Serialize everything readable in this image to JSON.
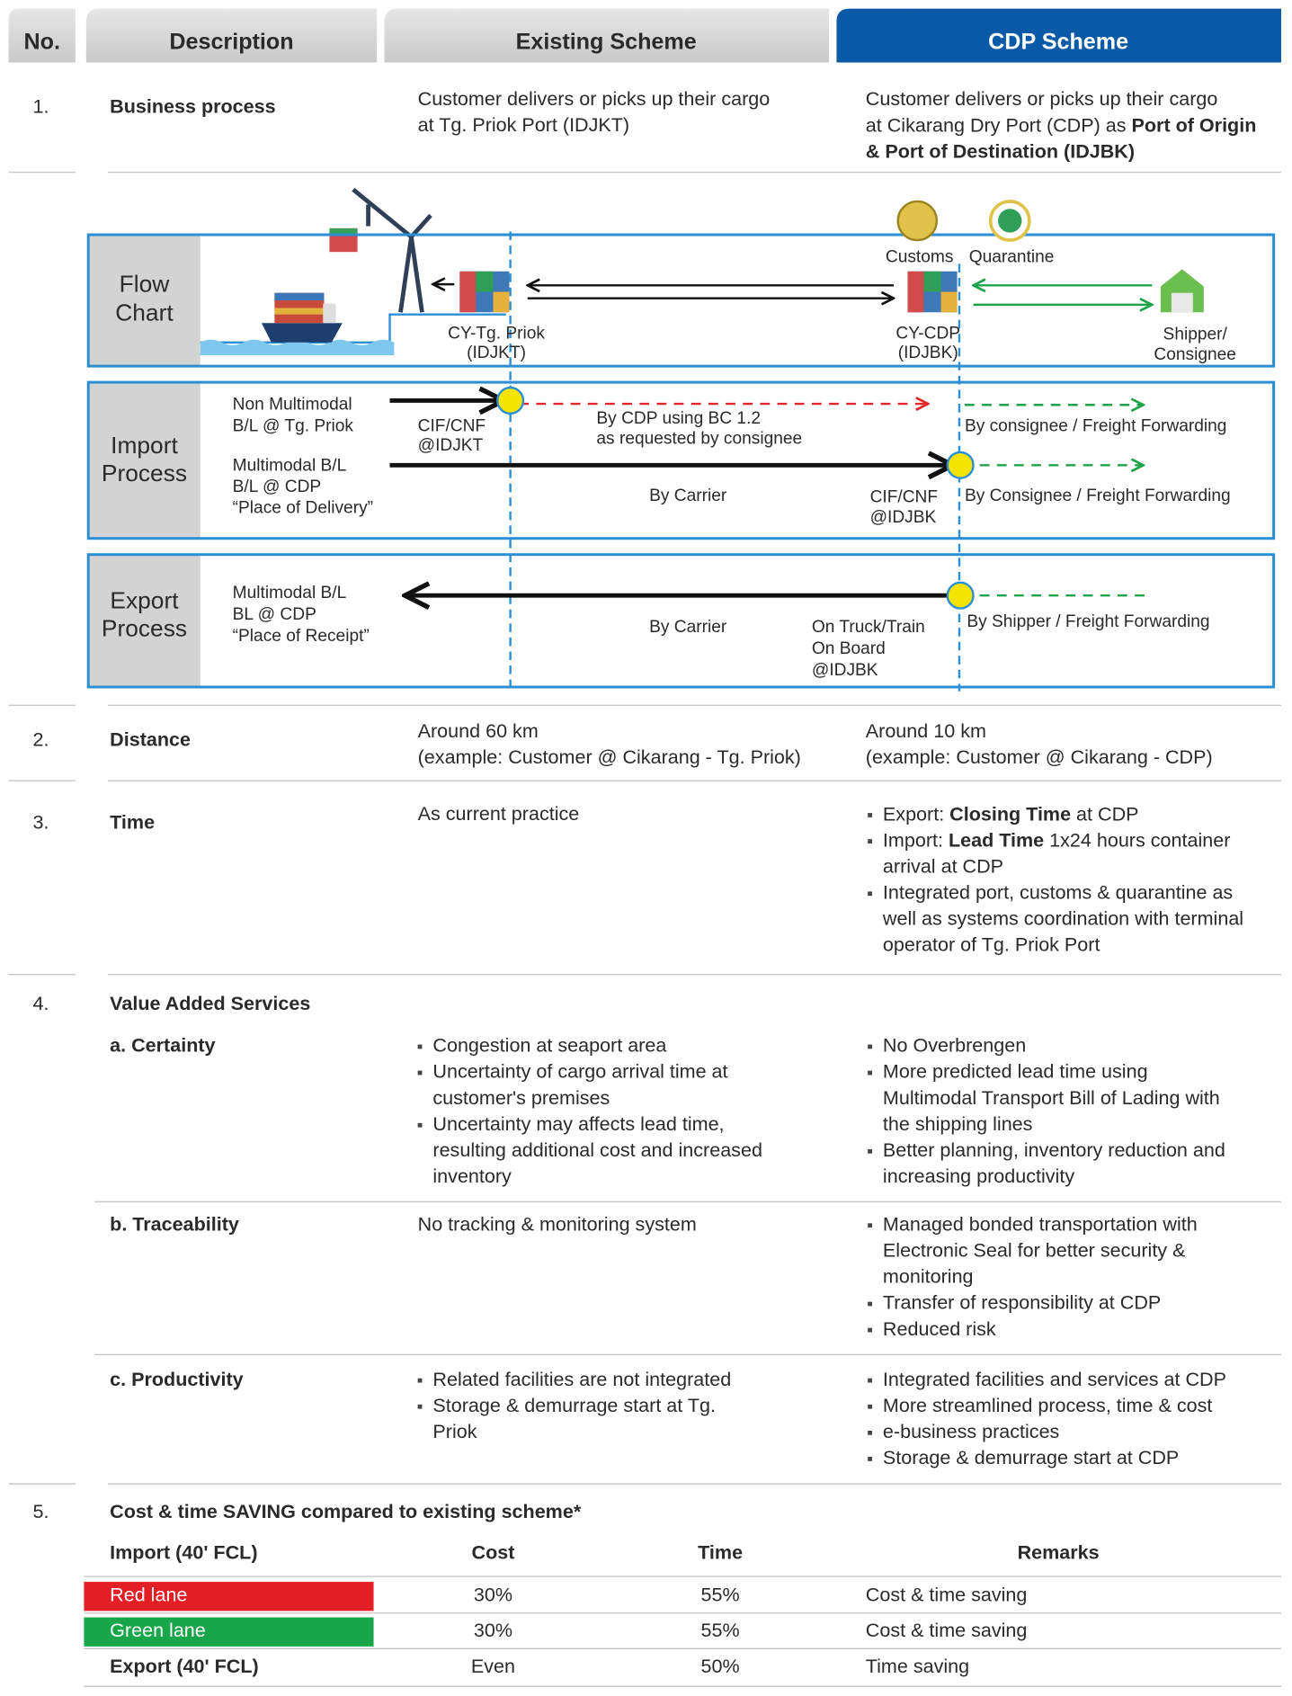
{
  "header": {
    "no": "No.",
    "description": "Description",
    "existing": "Existing Scheme",
    "cdp": "CDP Scheme"
  },
  "business_process": {
    "no": "1.",
    "label": "Business process",
    "existing": [
      "Customer delivers or picks up their cargo",
      "at Tg. Priok Port (IDJKT)"
    ],
    "cdp": [
      "Customer delivers or picks up their cargo",
      [
        {
          "text": "at Cikarang Dry Port (CDP) as "
        },
        {
          "text": "Port of Origin",
          "bold": true
        }
      ],
      [
        {
          "text": "& Port of Destination (IDJBK)",
          "bold": true
        }
      ]
    ]
  },
  "flow_chart": {
    "label": [
      "Flow",
      "Chart"
    ],
    "customs": "Customs",
    "quarantine": "Quarantine",
    "cy_priok": [
      "CY-Tg. Priok",
      "(IDJKT)"
    ],
    "cy_cdp": [
      "CY-CDP",
      "(IDJBK)"
    ],
    "shipper": [
      "Shipper/",
      "Consignee"
    ]
  },
  "import_process": {
    "label": [
      "Import",
      "Process"
    ],
    "non_multimodal": [
      "Non Multimodal",
      "B/L @ Tg. Priok"
    ],
    "multimodal": [
      "Multimodal B/L",
      "B/L @ CDP",
      "“Place of Delivery”"
    ],
    "cif_idjkt": [
      "CIF/CNF",
      "@IDJKT"
    ],
    "by_cdp": [
      "By CDP using BC 1.2",
      "as requested by consignee"
    ],
    "by_consignee_non_multimodal": "By consignee / Freight Forwarding",
    "by_carrier": "By Carrier",
    "cif_idjbk": [
      "CIF/CNF",
      "@IDJBK"
    ],
    "by_consignee_multimodal": "By Consignee / Freight Forwarding"
  },
  "export_process": {
    "label": [
      "Export",
      "Process"
    ],
    "multimodal": [
      "Multimodal B/L",
      "BL @ CDP",
      "“Place of Receipt”"
    ],
    "by_carrier": "By Carrier",
    "on_truck": [
      "On Truck/Train",
      "On Board",
      "@IDJBK"
    ],
    "by_shipper": "By Shipper / Freight Forwarding"
  },
  "distance": {
    "no": "2.",
    "label": "Distance",
    "existing": [
      "Around 60 km",
      "(example: Customer @ Cikarang - Tg. Priok)"
    ],
    "cdp": [
      "Around 10 km",
      "(example: Customer @ Cikarang  - CDP)"
    ]
  },
  "time": {
    "no": "3.",
    "label": "Time",
    "existing": [
      "As current practice"
    ],
    "cdp_bullets": [
      [
        [
          {
            "text": "Export: "
          },
          {
            "text": "Closing Time",
            "bold": true
          },
          {
            "text": " at CDP"
          }
        ]
      ],
      [
        [
          {
            "text": "Import: "
          },
          {
            "text": "Lead Time",
            "bold": true
          },
          {
            "text": " 1x24 hours container"
          }
        ],
        "arrival at CDP"
      ],
      [
        "Integrated port, customs & quarantine as",
        "well as systems coordination with terminal",
        "operator of Tg. Priok Port"
      ]
    ]
  },
  "value_added": {
    "no": "4.",
    "label": "Value Added Services",
    "certainty": {
      "label": "a. Certainty",
      "existing_bullets": [
        [
          "Congestion at seaport area"
        ],
        [
          "Uncertainty of cargo arrival time at",
          "customer's premises"
        ],
        [
          "Uncertainty may affects lead time,",
          "resulting additional cost and increased",
          "inventory"
        ]
      ],
      "cdp_bullets": [
        [
          "No Overbrengen"
        ],
        [
          "More predicted lead time using",
          "Multimodal Transport Bill of Lading with",
          "the shipping lines"
        ],
        [
          "Better planning, inventory reduction and",
          "increasing productivity"
        ]
      ]
    },
    "traceability": {
      "label": "b. Traceability",
      "existing": [
        "No tracking & monitoring system"
      ],
      "cdp_bullets": [
        [
          "Managed bonded transportation with",
          "Electronic Seal for better security &",
          "monitoring"
        ],
        [
          "Transfer of responsibility at CDP"
        ],
        [
          "Reduced risk"
        ]
      ]
    },
    "productivity": {
      "label": "c. Productivity",
      "existing_bullets": [
        [
          "Related facilities are not integrated"
        ],
        [
          "Storage & demurrage start at Tg.",
          "Priok"
        ]
      ],
      "cdp_bullets": [
        [
          "Integrated facilities and services at CDP"
        ],
        [
          "More streamlined process, time & cost"
        ],
        [
          "e-business practices"
        ],
        [
          "Storage & demurrage start at CDP"
        ]
      ]
    }
  },
  "saving": {
    "no": "5.",
    "label": "Cost & time SAVING compared to existing scheme*",
    "columns": [
      "Import (40' FCL)",
      "Cost",
      "Time",
      "Remarks"
    ],
    "rows": [
      [
        "Red lane",
        "30%",
        "55%",
        "Cost & time saving"
      ],
      [
        "Green lane",
        "30%",
        "55%",
        "Cost & time saving"
      ],
      [
        "Export (40' FCL)",
        "Even",
        "50%",
        "Time saving"
      ]
    ]
  }
}
